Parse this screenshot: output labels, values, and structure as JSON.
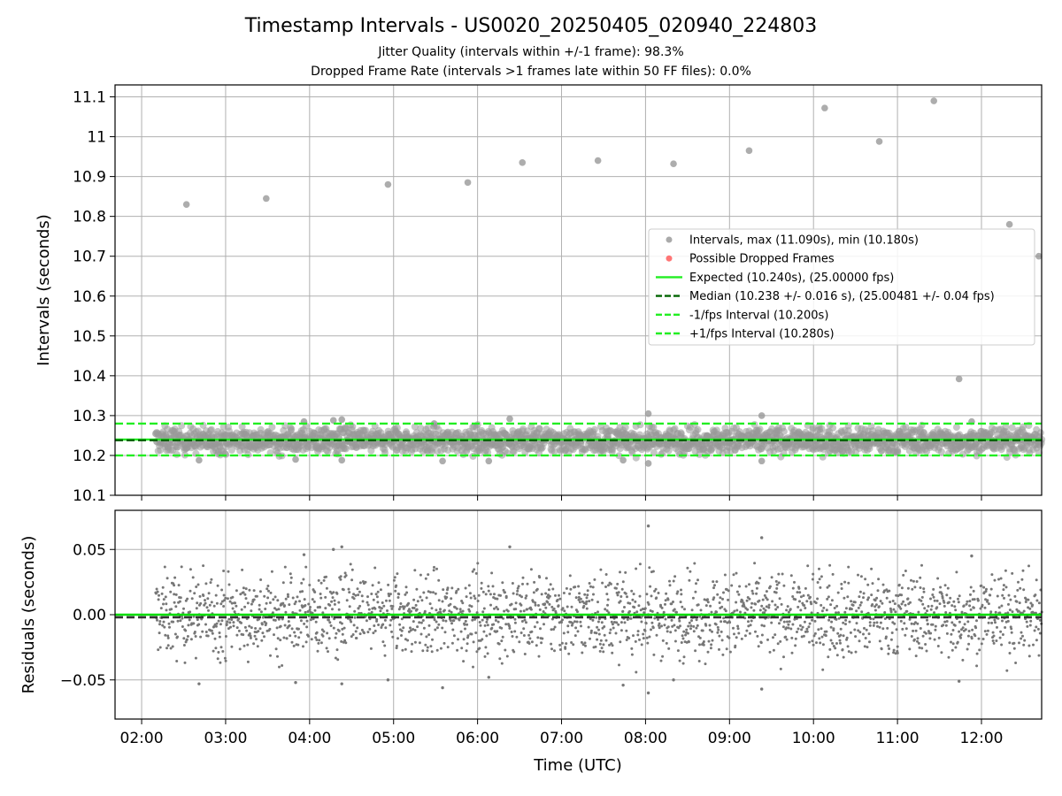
{
  "chart_data": [
    {
      "type": "scatter",
      "title": "Timestamp Intervals - US0020_20250405_020940_224803",
      "subtitle_lines": [
        "Jitter Quality (intervals within +/-1 frame): 98.3%",
        "Dropped Frame Rate (intervals >1 frames late within 50 FF files): 0.0%"
      ],
      "xlabel": "",
      "ylabel": "Intervals (seconds)",
      "x_unit": "time (UTC)",
      "xlim": [
        "01:41",
        "12:43"
      ],
      "ylim": [
        10.1,
        11.13
      ],
      "yticks": [
        10.1,
        10.2,
        10.3,
        10.4,
        10.5,
        10.6,
        10.7,
        10.8,
        10.9,
        11.0,
        11.1
      ],
      "grid": true,
      "legend_position": "right",
      "series": [
        {
          "name": "Intervals, max (11.090s), min (10.180s)",
          "color": "#aaaaaa",
          "points_note": "dense band between 10.19 and 10.28 s from 02:10 to 12:43",
          "outliers": [
            {
              "x": "02:32",
              "y": 10.83
            },
            {
              "x": "03:29",
              "y": 10.845
            },
            {
              "x": "04:56",
              "y": 10.88
            },
            {
              "x": "05:53",
              "y": 10.885
            },
            {
              "x": "06:32",
              "y": 10.935
            },
            {
              "x": "07:26",
              "y": 10.94
            },
            {
              "x": "08:20",
              "y": 10.932
            },
            {
              "x": "09:14",
              "y": 10.965
            },
            {
              "x": "10:08",
              "y": 11.072
            },
            {
              "x": "10:47",
              "y": 10.988
            },
            {
              "x": "11:26",
              "y": 11.09
            },
            {
              "x": "12:20",
              "y": 10.78
            },
            {
              "x": "12:41",
              "y": 10.7
            },
            {
              "x": "11:44",
              "y": 10.392
            },
            {
              "x": "08:02",
              "y": 10.305
            },
            {
              "x": "09:23",
              "y": 10.3
            },
            {
              "x": "04:23",
              "y": 10.29
            },
            {
              "x": "04:17",
              "y": 10.288
            },
            {
              "x": "06:23",
              "y": 10.292
            },
            {
              "x": "03:56",
              "y": 10.285
            },
            {
              "x": "11:53",
              "y": 10.285
            },
            {
              "x": "05:29",
              "y": 10.28
            },
            {
              "x": "02:41",
              "y": 10.188
            },
            {
              "x": "04:23",
              "y": 10.188
            },
            {
              "x": "05:35",
              "y": 10.186
            },
            {
              "x": "06:08",
              "y": 10.186
            },
            {
              "x": "08:02",
              "y": 10.18
            },
            {
              "x": "09:23",
              "y": 10.186
            },
            {
              "x": "07:44",
              "y": 10.188
            },
            {
              "x": "03:50",
              "y": 10.19
            }
          ]
        },
        {
          "name": "Possible Dropped Frames",
          "color": "#ff6666",
          "points": []
        },
        {
          "name": "Expected (10.240s), (25.00000 fps)",
          "color": "#22ee22",
          "style": "solid",
          "y": 10.24
        },
        {
          "name": "Median (10.238 +/- 0.016 s), (25.00481 +/- 0.04 fps)",
          "color": "#006400",
          "style": "dashed",
          "y": 10.238
        },
        {
          "name": "-1/fps Interval (10.200s)",
          "color": "#22ee22",
          "style": "dashed",
          "y": 10.2
        },
        {
          "name": "+1/fps Interval (10.280s)",
          "color": "#22ee22",
          "style": "dashed",
          "y": 10.28
        }
      ]
    },
    {
      "type": "scatter",
      "title": "",
      "xlabel": "Time (UTC)",
      "ylabel": "Residuals (seconds)",
      "xlim": [
        "01:41",
        "12:43"
      ],
      "xticks": [
        "02:00",
        "03:00",
        "04:00",
        "05:00",
        "06:00",
        "07:00",
        "08:00",
        "09:00",
        "10:00",
        "11:00",
        "12:00"
      ],
      "ylim": [
        -0.08,
        0.08
      ],
      "yticks": [
        -0.05,
        0.0,
        0.05
      ],
      "ytick_labels": [
        "−0.05",
        "0.00",
        "0.05"
      ],
      "grid": true,
      "series": [
        {
          "name": "",
          "color": "#777777",
          "points_note": "residuals scattered roughly between -0.045 and +0.04 s from 02:10 to 12:43",
          "outliers": [
            {
              "x": "08:02",
              "y": 0.068
            },
            {
              "x": "09:23",
              "y": 0.059
            },
            {
              "x": "04:23",
              "y": 0.052
            },
            {
              "x": "06:23",
              "y": 0.052
            },
            {
              "x": "04:17",
              "y": 0.05
            },
            {
              "x": "11:53",
              "y": 0.045
            },
            {
              "x": "03:56",
              "y": 0.046
            },
            {
              "x": "08:02",
              "y": -0.06
            },
            {
              "x": "09:23",
              "y": -0.057
            },
            {
              "x": "05:35",
              "y": -0.056
            },
            {
              "x": "02:41",
              "y": -0.053
            },
            {
              "x": "04:23",
              "y": -0.053
            },
            {
              "x": "07:44",
              "y": -0.054
            },
            {
              "x": "03:50",
              "y": -0.052
            },
            {
              "x": "11:44",
              "y": -0.051
            },
            {
              "x": "04:56",
              "y": -0.05
            },
            {
              "x": "06:08",
              "y": -0.048
            },
            {
              "x": "08:20",
              "y": -0.05
            }
          ]
        },
        {
          "name": "",
          "color": "#00dd00",
          "style": "solid",
          "y": 0.0
        },
        {
          "name": "",
          "color": "#333333",
          "style": "dashed",
          "y": -0.002
        }
      ]
    }
  ]
}
